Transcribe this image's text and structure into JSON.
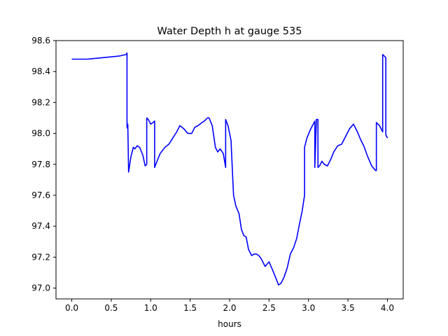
{
  "chart_data": {
    "type": "line",
    "title": "Water Depth h at gauge 535",
    "xlabel": "hours",
    "ylabel": "",
    "xlim": [
      -0.2,
      4.2
    ],
    "ylim": [
      96.93,
      98.6
    ],
    "xticks": [
      0.0,
      0.5,
      1.0,
      1.5,
      2.0,
      2.5,
      3.0,
      3.5,
      4.0
    ],
    "xtick_labels": [
      "0.0",
      "0.5",
      "1.0",
      "1.5",
      "2.0",
      "2.5",
      "3.0",
      "3.5",
      "4.0"
    ],
    "yticks": [
      97.0,
      97.2,
      97.4,
      97.6,
      97.8,
      98.0,
      98.2,
      98.4,
      98.6
    ],
    "ytick_labels": [
      "97.0",
      "97.2",
      "97.4",
      "97.6",
      "97.8",
      "98.0",
      "98.2",
      "98.4",
      "98.6"
    ],
    "grid": false,
    "line_color": "#0000ff",
    "series": [
      {
        "x": [
          0.0,
          0.2,
          0.4,
          0.6,
          0.69,
          0.7,
          0.7,
          0.71,
          0.71,
          0.72,
          0.75,
          0.78,
          0.8,
          0.83,
          0.86,
          0.9,
          0.93,
          0.95,
          0.95,
          0.97,
          1.0,
          1.03,
          1.05,
          1.05,
          1.08,
          1.12,
          1.18,
          1.23,
          1.28,
          1.33,
          1.37,
          1.42,
          1.47,
          1.52,
          1.56,
          1.6,
          1.65,
          1.68,
          1.72,
          1.74,
          1.78,
          1.82,
          1.85,
          1.88,
          1.92,
          1.95,
          1.95,
          1.98,
          2.02,
          2.02,
          2.05,
          2.08,
          2.12,
          2.15,
          2.18,
          2.21,
          2.24,
          2.28,
          2.31,
          2.34,
          2.37,
          2.4,
          2.45,
          2.5,
          2.55,
          2.59,
          2.62,
          2.65,
          2.69,
          2.73,
          2.77,
          2.81,
          2.85,
          2.88,
          2.92,
          2.95,
          2.95,
          2.98,
          3.02,
          3.06,
          3.08,
          3.08,
          3.1,
          3.12,
          3.12,
          3.14,
          3.17,
          3.2,
          3.24,
          3.28,
          3.32,
          3.37,
          3.42,
          3.47,
          3.52,
          3.57,
          3.62,
          3.66,
          3.7,
          3.75,
          3.8,
          3.85,
          3.86,
          3.86,
          3.9,
          3.94,
          3.94,
          3.96,
          3.98,
          3.98,
          4.0
        ],
        "y": [
          98.48,
          98.48,
          98.49,
          98.5,
          98.51,
          98.52,
          98.04,
          98.03,
          98.06,
          97.75,
          97.85,
          97.91,
          97.9,
          97.92,
          97.91,
          97.86,
          97.79,
          97.8,
          98.1,
          98.09,
          98.06,
          98.07,
          98.08,
          97.78,
          97.82,
          97.87,
          97.91,
          97.93,
          97.97,
          98.01,
          98.05,
          98.03,
          98.0,
          98.0,
          98.04,
          98.05,
          98.07,
          98.08,
          98.1,
          98.1,
          98.05,
          97.91,
          97.88,
          97.9,
          97.87,
          97.78,
          98.09,
          98.05,
          97.95,
          97.93,
          97.6,
          97.53,
          97.48,
          97.38,
          97.34,
          97.33,
          97.25,
          97.21,
          97.22,
          97.22,
          97.21,
          97.19,
          97.14,
          97.17,
          97.11,
          97.06,
          97.02,
          97.03,
          97.07,
          97.13,
          97.22,
          97.26,
          97.32,
          97.4,
          97.5,
          97.6,
          97.91,
          97.97,
          98.02,
          98.06,
          98.08,
          97.78,
          98.09,
          98.09,
          97.78,
          97.79,
          97.82,
          97.8,
          97.79,
          97.83,
          97.88,
          97.92,
          97.93,
          97.98,
          98.03,
          98.06,
          98.01,
          97.96,
          97.92,
          97.85,
          97.79,
          97.76,
          97.76,
          98.07,
          98.05,
          98.01,
          98.51,
          98.5,
          98.49,
          97.99,
          97.97
        ]
      }
    ]
  }
}
